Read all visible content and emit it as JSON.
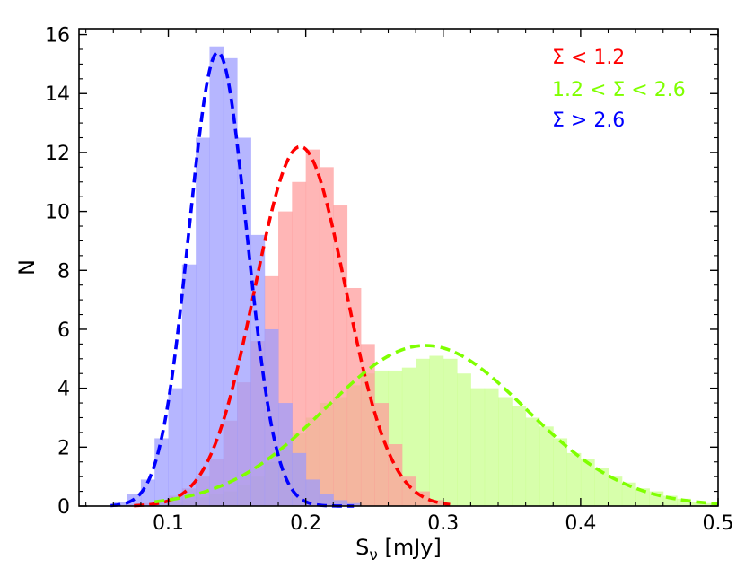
{
  "chart_data": {
    "type": "bar",
    "xlabel_main": "S",
    "xlabel_sub": "ν",
    "xlabel_rest": " [mJy]",
    "ylabel": "N",
    "xlim": [
      0.035,
      0.5
    ],
    "ylim": [
      0,
      16.2
    ],
    "xticks": [
      {
        "v": 0.1,
        "label": "0.1"
      },
      {
        "v": 0.2,
        "label": "0.2"
      },
      {
        "v": 0.3,
        "label": "0.3"
      },
      {
        "v": 0.4,
        "label": "0.4"
      },
      {
        "v": 0.5,
        "label": "0.5"
      }
    ],
    "yticks": [
      {
        "v": 0,
        "label": "0"
      },
      {
        "v": 2,
        "label": "2"
      },
      {
        "v": 4,
        "label": "4"
      },
      {
        "v": 6,
        "label": "6"
      },
      {
        "v": 8,
        "label": "8"
      },
      {
        "v": 10,
        "label": "10"
      },
      {
        "v": 12,
        "label": "12"
      },
      {
        "v": 14,
        "label": "14"
      },
      {
        "v": 16,
        "label": "16"
      }
    ],
    "xminor_step": 0.02,
    "yminor_step": 0.5,
    "legend_placement": "top-right",
    "series": [
      {
        "name": "Σ < 1.2",
        "color": "#ff0000",
        "fill": "#ff9a9a",
        "hist": {
          "edges": [
            0.07,
            0.08,
            0.09,
            0.1,
            0.11,
            0.12,
            0.13,
            0.14,
            0.15,
            0.16,
            0.17,
            0.18,
            0.19,
            0.2,
            0.21,
            0.22,
            0.23,
            0.24,
            0.25,
            0.26,
            0.27,
            0.28,
            0.29,
            0.3
          ],
          "counts": [
            0.05,
            0.1,
            0.2,
            0.35,
            0.6,
            1.0,
            1.6,
            2.9,
            4.2,
            5.6,
            7.8,
            10.0,
            11.0,
            12.1,
            11.5,
            10.2,
            7.4,
            5.5,
            3.5,
            2.1,
            1.0,
            0.5,
            0.2
          ]
        },
        "fit": {
          "mu": 0.196,
          "sigma": 0.033,
          "amp": 12.2,
          "xmin": 0.075,
          "xmax": 0.305
        }
      },
      {
        "name": "1.2 < Σ < 2.6",
        "color": "#7fff00",
        "fill": "#c8ff8a",
        "hist": {
          "edges": [
            0.09,
            0.1,
            0.11,
            0.12,
            0.13,
            0.14,
            0.15,
            0.16,
            0.17,
            0.18,
            0.19,
            0.2,
            0.21,
            0.22,
            0.23,
            0.24,
            0.25,
            0.26,
            0.27,
            0.28,
            0.29,
            0.3,
            0.31,
            0.32,
            0.33,
            0.34,
            0.35,
            0.36,
            0.37,
            0.38,
            0.39,
            0.4,
            0.41,
            0.42,
            0.43,
            0.44,
            0.45,
            0.46,
            0.47,
            0.48,
            0.49,
            0.5
          ],
          "counts": [
            0.1,
            0.15,
            0.2,
            0.3,
            0.4,
            0.5,
            0.7,
            1.0,
            1.5,
            1.9,
            2.5,
            3.0,
            3.5,
            3.7,
            4.1,
            4.5,
            4.6,
            4.6,
            4.7,
            5.0,
            5.1,
            5.0,
            4.5,
            4.0,
            4.0,
            3.7,
            3.4,
            3.0,
            2.7,
            2.3,
            1.8,
            1.6,
            1.3,
            1.0,
            0.8,
            0.6,
            0.5,
            0.35,
            0.25,
            0.15,
            0.1
          ]
        },
        "fit": {
          "mu": 0.287,
          "sigma": 0.073,
          "amp": 5.45,
          "xmin": 0.09,
          "xmax": 0.5
        }
      },
      {
        "name": "Σ > 2.6",
        "color": "#0000ff",
        "fill": "#9a9aff",
        "hist": {
          "edges": [
            0.06,
            0.07,
            0.08,
            0.09,
            0.1,
            0.11,
            0.12,
            0.13,
            0.14,
            0.15,
            0.16,
            0.17,
            0.18,
            0.19,
            0.2,
            0.21,
            0.22,
            0.23,
            0.24
          ],
          "counts": [
            0.15,
            0.4,
            0.9,
            2.3,
            4.0,
            8.2,
            12.5,
            15.6,
            15.2,
            12.5,
            9.2,
            6.0,
            3.5,
            1.8,
            0.9,
            0.4,
            0.2,
            0.1
          ]
        },
        "fit": {
          "mu": 0.136,
          "sigma": 0.021,
          "amp": 15.4,
          "xmin": 0.058,
          "xmax": 0.235
        }
      }
    ]
  }
}
